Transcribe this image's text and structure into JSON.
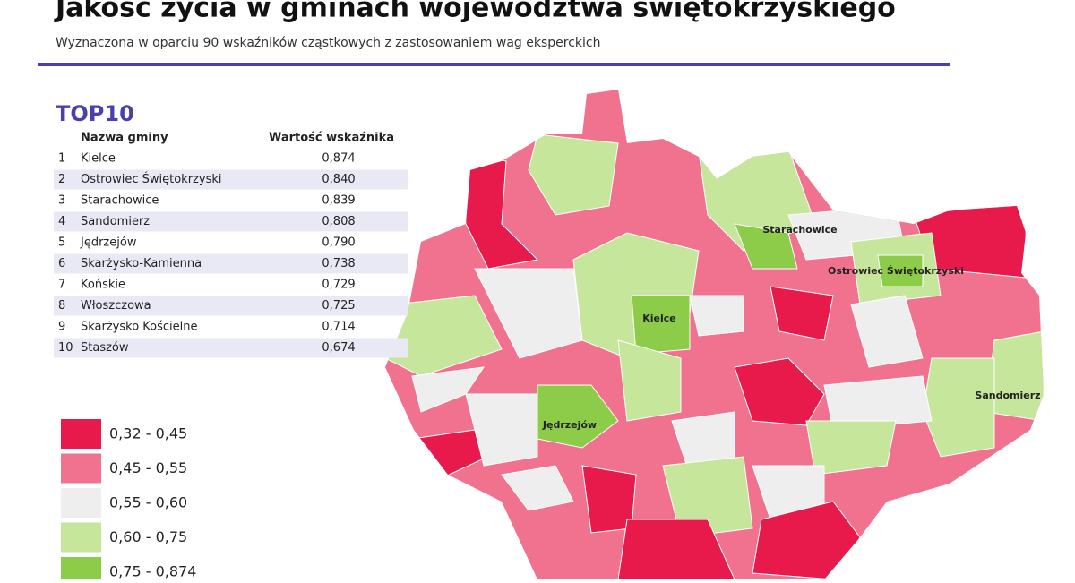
{
  "header": {
    "title": "Jakość życia w gminach województwa świętokrzyskiego",
    "subtitle": "Wyznaczona w oparciu 90 wskaźników cząstkowych z zastosowaniem wag eksperckich"
  },
  "table": {
    "title": "TOP10",
    "columns": [
      "Nazwa gminy",
      "Wartość wskaźnika"
    ],
    "rows": [
      [
        "1",
        "Kielce",
        "0,874"
      ],
      [
        "2",
        "Ostrowiec Świętokrzyski",
        "0,840"
      ],
      [
        "3",
        "Starachowice",
        "0,839"
      ],
      [
        "4",
        "Sandomierz",
        "0,808"
      ],
      [
        "5",
        "Jędrzejów",
        "0,790"
      ],
      [
        "6",
        "Skarżysko-Kamienna",
        "0,738"
      ],
      [
        "7",
        "Końskie",
        "0,729"
      ],
      [
        "8",
        "Włoszczowa",
        "0,725"
      ],
      [
        "9",
        "Skarżysko Kościelne",
        "0,714"
      ],
      [
        "10",
        "Staszów",
        "0,674"
      ]
    ]
  },
  "legend": [
    {
      "label": "0,32 - 0,45",
      "color": "#e8194b"
    },
    {
      "label": "0,45 - 0,55",
      "color": "#f0728f"
    },
    {
      "label": "0,55 - 0,60",
      "color": "#eeeeee"
    },
    {
      "label": "0,60 - 0,75",
      "color": "#c6e69c"
    },
    {
      "label": "0,75 - 0,874",
      "color": "#8ccc48"
    }
  ],
  "map_labels": [
    "Starachowice",
    "Ostrowiec Świętokrzyski",
    "Kielce",
    "Jędrzejów",
    "Sandomierz"
  ]
}
